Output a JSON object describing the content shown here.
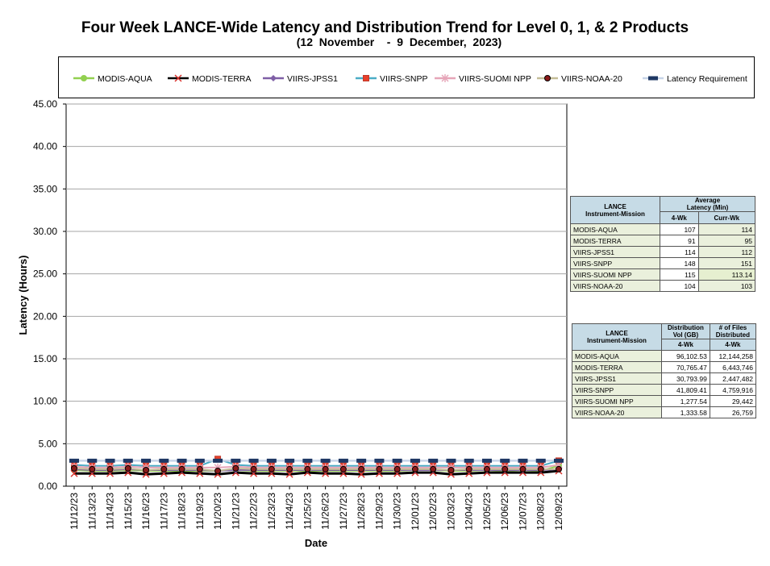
{
  "chart_data": {
    "type": "line",
    "title": "Four Week LANCE-Wide Latency and Distribution Trend for Level 0, 1, & 2 Products",
    "subtitle": "(12  November    -  9  December,  2023)",
    "xlabel": "Date",
    "ylabel": "Latency (Hours)",
    "ylim": [
      0,
      45
    ],
    "yticks": [
      "0.00",
      "5.00",
      "10.00",
      "15.00",
      "20.00",
      "25.00",
      "30.00",
      "35.00",
      "40.00",
      "45.00"
    ],
    "grid": true,
    "legend_position": "top",
    "categories": [
      "11/12/23",
      "11/13/23",
      "11/14/23",
      "11/15/23",
      "11/16/23",
      "11/17/23",
      "11/18/23",
      "11/19/23",
      "11/20/23",
      "11/21/23",
      "11/22/23",
      "11/23/23",
      "11/24/23",
      "11/25/23",
      "11/26/23",
      "11/27/23",
      "11/28/23",
      "11/29/23",
      "11/30/23",
      "12/01/23",
      "12/02/23",
      "12/03/23",
      "12/04/23",
      "12/05/23",
      "12/06/23",
      "12/07/23",
      "12/08/23",
      "12/09/23"
    ],
    "series": [
      {
        "name": "MODIS-AQUA",
        "color": "#92d050",
        "marker": "circle",
        "values": [
          1.9,
          1.8,
          1.8,
          1.9,
          1.8,
          1.8,
          1.8,
          1.8,
          1.8,
          1.9,
          1.8,
          1.8,
          1.8,
          1.8,
          1.8,
          1.8,
          1.8,
          1.8,
          1.8,
          1.9,
          1.9,
          1.8,
          1.8,
          1.9,
          1.8,
          1.9,
          1.8,
          2.4
        ]
      },
      {
        "name": "MODIS-TERRA",
        "color": "#000000",
        "marker": "x",
        "values": [
          1.5,
          1.5,
          1.5,
          1.6,
          1.4,
          1.5,
          1.6,
          1.5,
          1.4,
          1.6,
          1.5,
          1.5,
          1.4,
          1.6,
          1.5,
          1.5,
          1.4,
          1.5,
          1.5,
          1.6,
          1.6,
          1.4,
          1.5,
          1.6,
          1.6,
          1.6,
          1.6,
          1.8
        ]
      },
      {
        "name": "VIIRS-JPSS1",
        "color": "#7f5fa6",
        "marker": "diamond",
        "values": [
          2.0,
          1.9,
          1.9,
          2.0,
          1.9,
          1.9,
          1.9,
          1.9,
          1.8,
          1.9,
          1.9,
          1.9,
          1.9,
          1.9,
          1.9,
          1.9,
          1.9,
          1.9,
          1.9,
          1.9,
          1.9,
          1.9,
          1.9,
          1.9,
          1.9,
          1.9,
          1.9,
          2.0
        ]
      },
      {
        "name": "VIIRS-SNPP",
        "color": "#4bacc6",
        "marker": "square",
        "values": [
          2.5,
          2.4,
          2.4,
          2.5,
          2.4,
          2.4,
          2.4,
          2.4,
          3.2,
          2.5,
          2.4,
          2.4,
          2.4,
          2.4,
          2.4,
          2.4,
          2.4,
          2.4,
          2.4,
          2.4,
          2.4,
          2.4,
          2.4,
          2.4,
          2.4,
          2.4,
          2.4,
          3.0
        ]
      },
      {
        "name": "VIIRS-SUOMI NPP",
        "color": "#e6a5b8",
        "marker": "star",
        "values": [
          2.3,
          2.2,
          2.2,
          2.3,
          2.2,
          2.2,
          2.2,
          2.2,
          2.2,
          2.3,
          2.2,
          2.2,
          2.2,
          2.2,
          2.2,
          2.2,
          2.2,
          2.2,
          2.2,
          2.2,
          2.2,
          2.2,
          2.2,
          2.2,
          2.2,
          2.2,
          2.2,
          2.5
        ]
      },
      {
        "name": "VIIRS-NOAA-20",
        "color": "#c4bd97",
        "marker": "dotcircle",
        "values": [
          2.1,
          2.0,
          2.0,
          2.1,
          1.9,
          2.0,
          2.0,
          2.0,
          1.8,
          2.1,
          2.0,
          2.0,
          2.0,
          2.0,
          2.0,
          2.0,
          2.0,
          2.0,
          2.0,
          2.0,
          2.0,
          1.9,
          2.0,
          2.0,
          2.0,
          2.0,
          2.0,
          2.0
        ]
      },
      {
        "name": "Latency Requirement",
        "color": "#1f3864",
        "marker": "dash",
        "values": [
          3,
          3,
          3,
          3,
          3,
          3,
          3,
          3,
          3,
          3,
          3,
          3,
          3,
          3,
          3,
          3,
          3,
          3,
          3,
          3,
          3,
          3,
          3,
          3,
          3,
          3,
          3,
          3
        ]
      }
    ]
  },
  "latency_table": {
    "header_mission": [
      "LANCE",
      "Instrument-Mission"
    ],
    "header_avg": [
      "Average",
      "Latency (Min)"
    ],
    "col_4wk": "4-Wk",
    "col_currwk": "Curr-Wk",
    "rows": [
      {
        "mission": "MODIS-AQUA",
        "wk4": "107",
        "curr": "114"
      },
      {
        "mission": "MODIS-TERRA",
        "wk4": "91",
        "curr": "95"
      },
      {
        "mission": "VIIRS-JPSS1",
        "wk4": "114",
        "curr": "112"
      },
      {
        "mission": "VIIRS-SNPP",
        "wk4": "148",
        "curr": "151"
      },
      {
        "mission": "VIIRS-SUOMI NPP",
        "wk4": "115",
        "curr": "113.14"
      },
      {
        "mission": "VIIRS-NOAA-20",
        "wk4": "104",
        "curr": "103"
      }
    ]
  },
  "distribution_table": {
    "header_mission": [
      "LANCE",
      "Instrument-Mission"
    ],
    "header_vol": [
      "Distribution",
      "Vol (GB)"
    ],
    "header_files": [
      "# of Files",
      "Distributed"
    ],
    "col_4wk": "4-Wk",
    "rows": [
      {
        "mission": "MODIS-AQUA",
        "vol": "96,102.53",
        "files": "12,144,258"
      },
      {
        "mission": "MODIS-TERRA",
        "vol": "70,765.47",
        "files": "6,443,746"
      },
      {
        "mission": "VIIRS-JPSS1",
        "vol": "30,793.99",
        "files": "2,447,482"
      },
      {
        "mission": "VIIRS-SNPP",
        "vol": "41,809.41",
        "files": "4,759,916"
      },
      {
        "mission": "VIIRS-SUOMI NPP",
        "vol": "1,277.54",
        "files": "29,442"
      },
      {
        "mission": "VIIRS-NOAA-20",
        "vol": "1,333.58",
        "files": "26,759"
      }
    ]
  }
}
